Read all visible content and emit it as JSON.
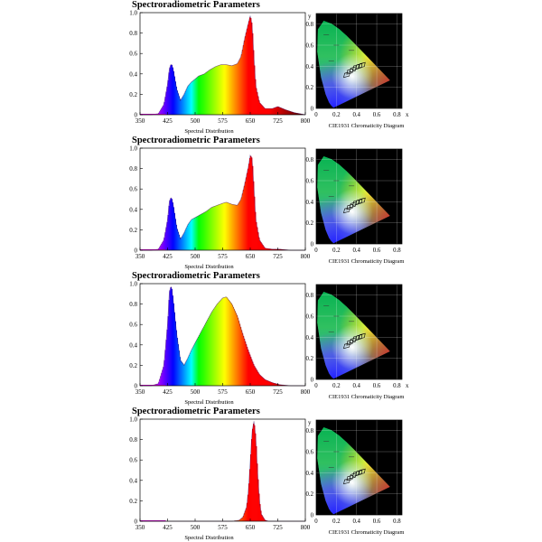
{
  "panels": [
    {
      "title": "Spectroradiometric Parameters",
      "chart_data": {
        "type": "area",
        "xlabel": "Spectral Distribution",
        "xlim": [
          350,
          800
        ],
        "ylim": [
          0,
          1.0
        ],
        "x_ticks": [
          "350",
          "425",
          "500",
          "575",
          "650",
          "725",
          "800"
        ],
        "y_ticks": [
          "0",
          "0.2",
          "0.4",
          "0.6",
          "0.8",
          "1.0"
        ],
        "x": [
          350,
          380,
          400,
          415,
          425,
          430,
          435,
          440,
          450,
          460,
          470,
          480,
          490,
          500,
          510,
          525,
          540,
          555,
          570,
          585,
          600,
          615,
          625,
          635,
          645,
          650,
          655,
          660,
          665,
          675,
          690,
          710,
          725,
          745,
          770,
          800
        ],
        "y": [
          0.0,
          0.0,
          0.01,
          0.1,
          0.3,
          0.45,
          0.5,
          0.45,
          0.25,
          0.14,
          0.2,
          0.28,
          0.32,
          0.35,
          0.38,
          0.4,
          0.44,
          0.47,
          0.49,
          0.49,
          0.48,
          0.5,
          0.57,
          0.75,
          0.9,
          0.97,
          0.88,
          0.55,
          0.28,
          0.12,
          0.06,
          0.06,
          0.08,
          0.05,
          0.02,
          0.0
        ]
      },
      "cie": {
        "xlabel": "CIE1931 Chromaticity Diagram",
        "axis_x": "x",
        "axis_y": "y",
        "x_ticks": [
          "0",
          "0.2",
          "0.4",
          "0.6",
          "0.8"
        ],
        "y_ticks": [
          "0",
          "0.2",
          "0.4",
          "0.6",
          "0.8"
        ]
      }
    },
    {
      "title": "Spectroradiometric Parameters",
      "chart_data": {
        "type": "area",
        "xlabel": "Spectral Distribution",
        "xlim": [
          350,
          800
        ],
        "ylim": [
          0,
          1.0
        ],
        "x_ticks": [
          "350",
          "425",
          "500",
          "575",
          "650",
          "725",
          "800"
        ],
        "y_ticks": [
          "0",
          "0.2",
          "0.4",
          "0.6",
          "0.8",
          "1.0"
        ],
        "x": [
          350,
          380,
          400,
          415,
          425,
          430,
          435,
          440,
          450,
          460,
          470,
          480,
          490,
          500,
          515,
          530,
          545,
          560,
          575,
          585,
          600,
          615,
          625,
          635,
          645,
          650,
          655,
          660,
          665,
          675,
          690,
          710,
          730,
          760,
          800
        ],
        "y": [
          0.0,
          0.0,
          0.01,
          0.1,
          0.3,
          0.48,
          0.52,
          0.45,
          0.22,
          0.11,
          0.17,
          0.25,
          0.3,
          0.32,
          0.35,
          0.38,
          0.42,
          0.44,
          0.46,
          0.47,
          0.45,
          0.44,
          0.5,
          0.65,
          0.82,
          0.93,
          0.9,
          0.6,
          0.3,
          0.1,
          0.02,
          0.01,
          0.01,
          0.0,
          0.0
        ]
      },
      "cie": {
        "xlabel": "CIE1931 Chromaticity Diagram",
        "axis_x": "",
        "axis_y": "",
        "x_ticks": [
          "0",
          "0.2",
          "0.4",
          "0.6",
          "0.8"
        ],
        "y_ticks": [
          "0",
          "0.2",
          "0.4",
          "0.6",
          "0.8"
        ]
      }
    },
    {
      "title": "Spectroradiometric Parameters",
      "chart_data": {
        "type": "area",
        "xlabel": "Spectral Distribution",
        "xlim": [
          350,
          800
        ],
        "ylim": [
          0,
          1.0
        ],
        "x_ticks": [
          "350",
          "425",
          "500",
          "575",
          "650",
          "725",
          "800"
        ],
        "y_ticks": [
          "0",
          "0.2",
          "0.4",
          "0.6",
          "0.8",
          "1.0"
        ],
        "x": [
          350,
          380,
          400,
          415,
          425,
          430,
          435,
          440,
          450,
          460,
          470,
          480,
          490,
          500,
          515,
          530,
          545,
          560,
          575,
          585,
          600,
          615,
          630,
          645,
          660,
          675,
          690,
          710,
          730,
          760,
          800
        ],
        "y": [
          0.0,
          0.0,
          0.02,
          0.2,
          0.6,
          0.92,
          0.98,
          0.85,
          0.5,
          0.25,
          0.2,
          0.27,
          0.35,
          0.42,
          0.52,
          0.62,
          0.72,
          0.8,
          0.86,
          0.87,
          0.8,
          0.68,
          0.5,
          0.34,
          0.2,
          0.11,
          0.06,
          0.03,
          0.01,
          0.0,
          0.0
        ]
      },
      "cie": {
        "xlabel": "CIE1931 Chromaticity Diagram",
        "axis_x": "x",
        "axis_y": "",
        "x_ticks": [
          "0",
          "0.2",
          "0.4",
          "0.6",
          "0.8"
        ],
        "y_ticks": [
          "0",
          "0.2",
          "0.4",
          "0.6",
          "0.8"
        ]
      }
    },
    {
      "title": "Spectroradiometric Parameters",
      "chart_data": {
        "type": "area",
        "xlabel": "Spectral Distribution",
        "xlim": [
          350,
          800
        ],
        "ylim": [
          0,
          1.0
        ],
        "x_ticks": [
          "350",
          "425",
          "500",
          "575",
          "650",
          "725",
          "800"
        ],
        "y_ticks": [
          "0",
          "0.2",
          "0.4",
          "0.6",
          "0.8",
          "1.0"
        ],
        "x": [
          350,
          600,
          620,
          630,
          640,
          645,
          650,
          655,
          660,
          665,
          670,
          675,
          680,
          690,
          700,
          800
        ],
        "y": [
          0.0,
          0.0,
          0.01,
          0.04,
          0.14,
          0.3,
          0.58,
          0.88,
          0.98,
          0.82,
          0.48,
          0.2,
          0.07,
          0.01,
          0.0,
          0.0
        ]
      },
      "cie": {
        "xlabel": "CIE1931 Chromaticity Diagram",
        "axis_x": "",
        "axis_y": "y",
        "x_ticks": [
          "0",
          "0.2",
          "0.4",
          "0.6",
          "0.8"
        ],
        "y_ticks": [
          "0",
          "0.2",
          "0.4",
          "0.6",
          "0.8"
        ]
      }
    }
  ]
}
